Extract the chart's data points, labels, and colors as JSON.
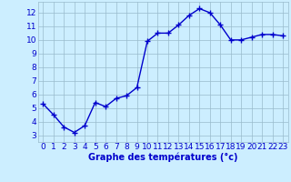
{
  "x": [
    0,
    1,
    2,
    3,
    4,
    5,
    6,
    7,
    8,
    9,
    10,
    11,
    12,
    13,
    14,
    15,
    16,
    17,
    18,
    19,
    20,
    21,
    22,
    23
  ],
  "y": [
    5.3,
    4.5,
    3.6,
    3.2,
    3.7,
    5.4,
    5.1,
    5.7,
    5.9,
    6.5,
    9.9,
    10.5,
    10.5,
    11.1,
    11.8,
    12.3,
    12.0,
    11.1,
    10.0,
    10.0,
    10.2,
    10.4,
    10.4,
    10.3
  ],
  "line_color": "#0000cc",
  "marker": "+",
  "markersize": 4,
  "linewidth": 1.0,
  "background_color": "#cceeff",
  "grid_color": "#99bbcc",
  "xlabel": "Graphe des températures (°c)",
  "xlabel_fontsize": 7,
  "xlabel_color": "#0000cc",
  "tick_color": "#0000cc",
  "tick_fontsize": 6.5,
  "xlim": [
    -0.5,
    23.5
  ],
  "ylim": [
    2.5,
    12.8
  ],
  "yticks": [
    3,
    4,
    5,
    6,
    7,
    8,
    9,
    10,
    11,
    12
  ],
  "xticks": [
    0,
    1,
    2,
    3,
    4,
    5,
    6,
    7,
    8,
    9,
    10,
    11,
    12,
    13,
    14,
    15,
    16,
    17,
    18,
    19,
    20,
    21,
    22,
    23
  ]
}
